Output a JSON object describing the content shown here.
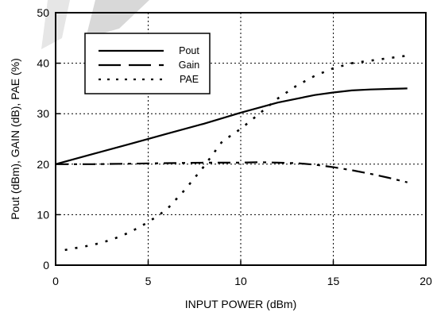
{
  "chart_data": {
    "type": "line",
    "title": "",
    "xlabel": "INPUT POWER (dBm)",
    "ylabel": "Pout (dBm), GAIN (dB), PAE (%)",
    "xlim": [
      0,
      20
    ],
    "ylim": [
      0,
      50
    ],
    "x_ticks": [
      "0",
      "5",
      "10",
      "15",
      "20"
    ],
    "y_ticks": [
      "0",
      "10",
      "20",
      "30",
      "40",
      "50"
    ],
    "grid": true,
    "legend_position": "top-left",
    "series": [
      {
        "name": "Pout",
        "style": "solid",
        "x": [
          0,
          2,
          4,
          6,
          8,
          10,
          12,
          14,
          15,
          16,
          17,
          18,
          19
        ],
        "y": [
          20,
          22,
          24,
          26,
          28,
          30.2,
          32.2,
          33.7,
          34.2,
          34.6,
          34.8,
          34.9,
          35
        ]
      },
      {
        "name": "Gain",
        "style": "dashed",
        "x": [
          0,
          2,
          4,
          6,
          8,
          10,
          11,
          12,
          13,
          14,
          15,
          16,
          17,
          18,
          19
        ],
        "y": [
          20,
          20,
          20.1,
          20.2,
          20.3,
          20.3,
          20.4,
          20.3,
          20.2,
          19.9,
          19.4,
          18.8,
          18.1,
          17.3,
          16.4
        ]
      },
      {
        "name": "PAE",
        "style": "dotted",
        "x": [
          0.5,
          2,
          3,
          4,
          5,
          6,
          7,
          8,
          9,
          10,
          11,
          12,
          13,
          14,
          15,
          16,
          17,
          18,
          19
        ],
        "y": [
          3,
          4,
          5,
          6.5,
          8.5,
          11,
          15,
          19.5,
          24.5,
          27,
          30,
          33,
          35.5,
          37.5,
          39,
          40,
          40.5,
          41,
          41.5
        ]
      }
    ]
  }
}
